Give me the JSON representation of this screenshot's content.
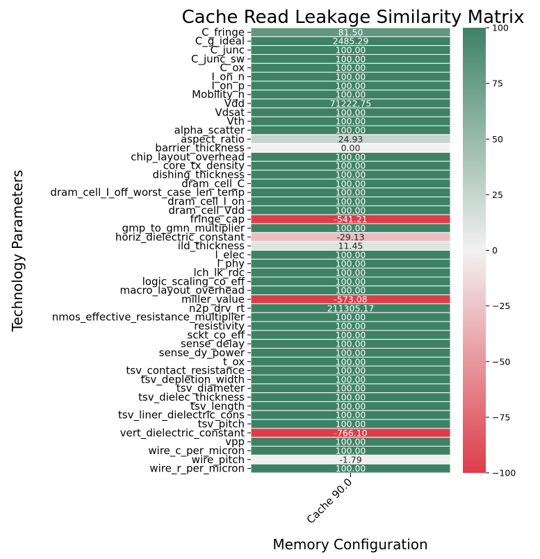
{
  "chart_data": {
    "type": "heatmap",
    "title": "Cache Read Leakage Similarity Matrix",
    "xlabel": "Memory Configuration",
    "ylabel": "Technology Parameters",
    "columns": [
      "Cache 90.0"
    ],
    "rows": [
      "C_fringe",
      "C_g_ideal",
      "C_junc",
      "C_junc_sw",
      "C_ox",
      "I_on_n",
      "I_on_p",
      "Mobility_n",
      "Vdd",
      "Vdsat",
      "Vth",
      "alpha_scatter",
      "aspect_ratio",
      "barrier_thickness",
      "chip_layout_overhead",
      "core_tx_density",
      "dishing_thickness",
      "dram_cell_C",
      "dram_cell_I_off_worst_case_len_temp",
      "dram_cell_I_on",
      "dram_cell_Vdd",
      "fringe_cap",
      "gmp_to_gmn_multiplier",
      "horiz_dielectric_constant",
      "ild_thickness",
      "l_elec",
      "l_phy",
      "lch_lk_rdc",
      "logic_scaling_co_eff",
      "macro_layout_overhead",
      "miller_value",
      "n2p_drv_rt",
      "nmos_effective_resistance_multiplier",
      "resistivity",
      "sckt_co_eff",
      "sense_delay",
      "sense_dy_power",
      "t_ox",
      "tsv_contact_resistance",
      "tsv_depletion_width",
      "tsv_diameter",
      "tsv_dielec_thickness",
      "tsv_length",
      "tsv_liner_dielectric_cons",
      "tsv_pitch",
      "vert_dielectric_constant",
      "vpp",
      "wire_c_per_micron",
      "wire_pitch",
      "wire_r_per_micron"
    ],
    "values": [
      81.5,
      2485.29,
      100.0,
      100.0,
      100.0,
      100.0,
      100.0,
      100.0,
      71222.75,
      100.0,
      100.0,
      100.0,
      24.93,
      0.0,
      100.0,
      100.0,
      100.0,
      100.0,
      100.0,
      100.0,
      100.0,
      -541.21,
      100.0,
      -29.13,
      11.45,
      100.0,
      100.0,
      100.0,
      100.0,
      100.0,
      -573.08,
      211305.17,
      100.0,
      100.0,
      100.0,
      100.0,
      100.0,
      100.0,
      100.0,
      100.0,
      100.0,
      100.0,
      100.0,
      100.0,
      100.0,
      -766.1,
      100.0,
      100.0,
      -1.79,
      100.0
    ],
    "value_labels": [
      "81.50",
      "2485.29",
      "100.00",
      "100.00",
      "100.00",
      "100.00",
      "100.00",
      "100.00",
      "71222.75",
      "100.00",
      "100.00",
      "100.00",
      "24.93",
      "0.00",
      "100.00",
      "100.00",
      "100.00",
      "100.00",
      "100.00",
      "100.00",
      "100.00",
      "-541.21",
      "100.00",
      "-29.13",
      "11.45",
      "100.00",
      "100.00",
      "100.00",
      "100.00",
      "100.00",
      "-573.08",
      "211305.17",
      "100.00",
      "100.00",
      "100.00",
      "100.00",
      "100.00",
      "100.00",
      "100.00",
      "100.00",
      "100.00",
      "100.00",
      "100.00",
      "100.00",
      "100.00",
      "-766.10",
      "100.00",
      "100.00",
      "-1.79",
      "100.00"
    ],
    "color_range": [
      -100,
      100
    ],
    "colormap": {
      "low": "#dd3d4a",
      "mid": "#f2f1f1",
      "high": "#3e8266"
    },
    "colorbar_ticks": [
      100,
      75,
      50,
      25,
      0,
      -25,
      -50,
      -75,
      -100
    ],
    "colorbar_tick_labels": [
      "100",
      "75",
      "50",
      "25",
      "0",
      "−25",
      "−50",
      "−75",
      "−100"
    ],
    "grid": false
  }
}
